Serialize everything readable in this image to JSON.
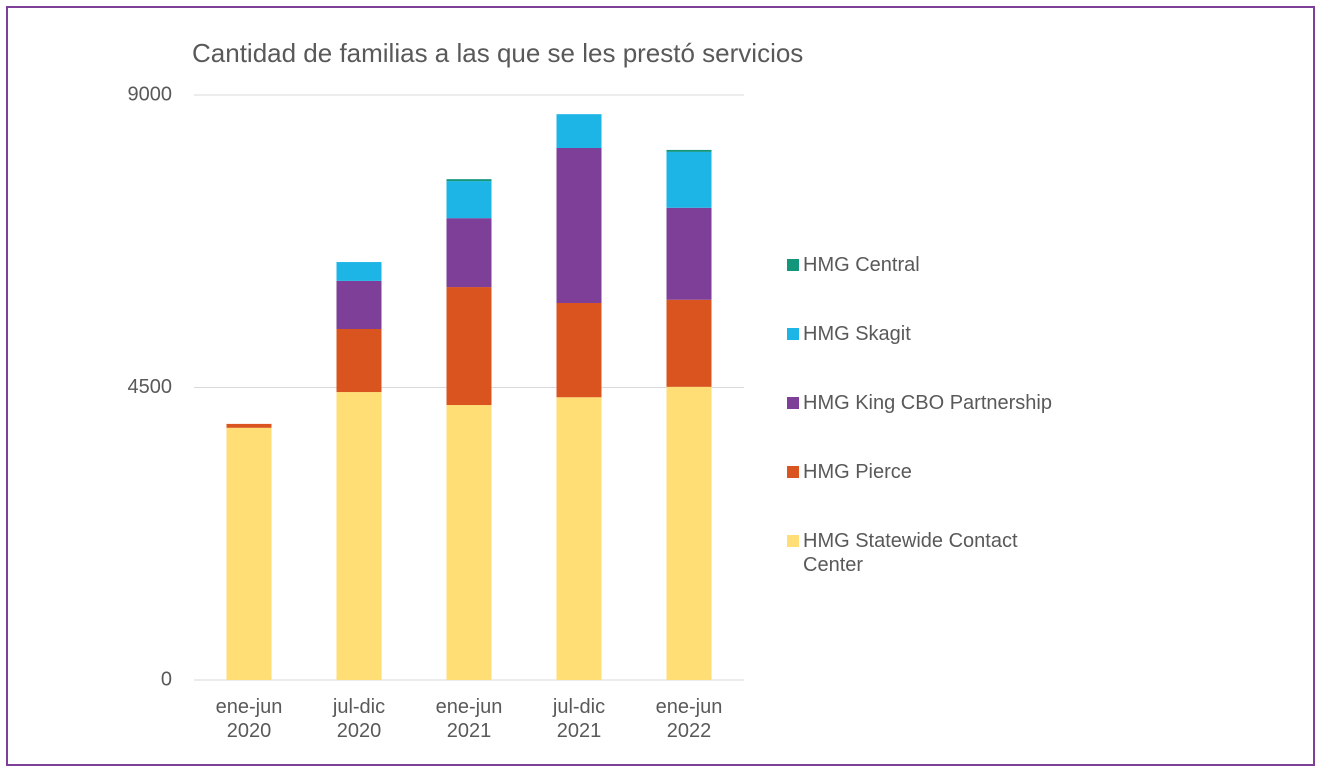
{
  "chart_data": {
    "type": "stacked_bar",
    "title": "Cantidad de familias a las que se les prestó servicios",
    "categories": [
      "ene-jun 2020",
      "jul-dic 2020",
      "ene-jun 2021",
      "jul-dic 2021",
      "ene-jun 2022"
    ],
    "series": [
      {
        "name": "HMG Statewide Contact Center",
        "color": "#FFDE75",
        "values": [
          3880,
          4430,
          4230,
          4350,
          4510
        ]
      },
      {
        "name": "HMG Pierce",
        "color": "#D9541E",
        "values": [
          60,
          970,
          1815,
          1450,
          1340
        ]
      },
      {
        "name": "HMG King CBO Partnership",
        "color": "#7E3F98",
        "values": [
          0,
          740,
          1060,
          2385,
          1415
        ]
      },
      {
        "name": "HMG Skagit",
        "color": "#1CB5E6",
        "values": [
          0,
          290,
          570,
          520,
          860
        ]
      },
      {
        "name": "HMG Central",
        "color": "#13967A",
        "values": [
          0,
          0,
          30,
          0,
          30
        ]
      }
    ],
    "ylim": [
      0,
      9000
    ],
    "yticks": [
      0,
      4500,
      9000
    ],
    "grid": true,
    "legend": "right"
  }
}
